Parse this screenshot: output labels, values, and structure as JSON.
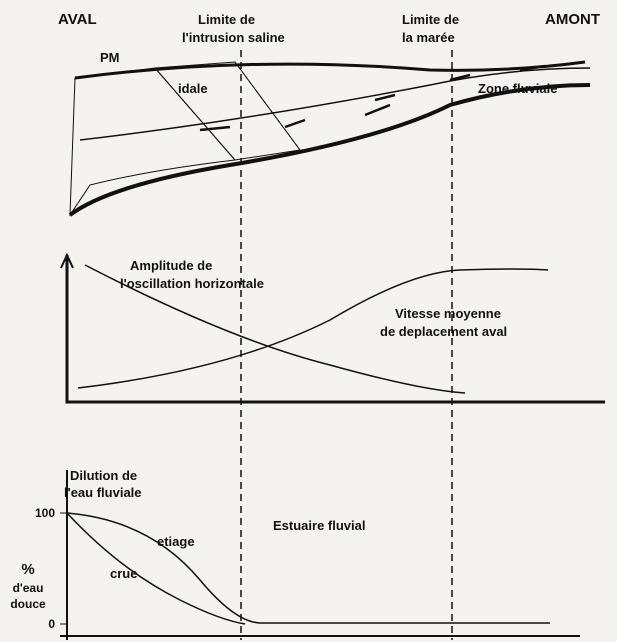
{
  "header": {
    "left": "AVAL",
    "right": "AMONT",
    "limit_saline": [
      "Limite de",
      "l'intrusion saline"
    ],
    "limit_maree": [
      "Limite de",
      "la marée"
    ]
  },
  "top": {
    "pm": "PM",
    "zone_tidale": "idale",
    "zone_fluviale": "Zone fluviale"
  },
  "middle": {
    "amplitude": [
      "Amplitude de",
      "l'oscillation horizontale"
    ],
    "vitesse": [
      "Vitesse moyenne",
      "de deplacement aval"
    ]
  },
  "bottom": {
    "title": [
      "Dilution de",
      "l'eau fluviale"
    ],
    "ticks": [
      "100",
      "0"
    ],
    "unit": [
      "%",
      "d'eau",
      "douce"
    ],
    "etiage": "etiage",
    "crue": "crue",
    "estuaire": "Estuaire fluvial"
  }
}
